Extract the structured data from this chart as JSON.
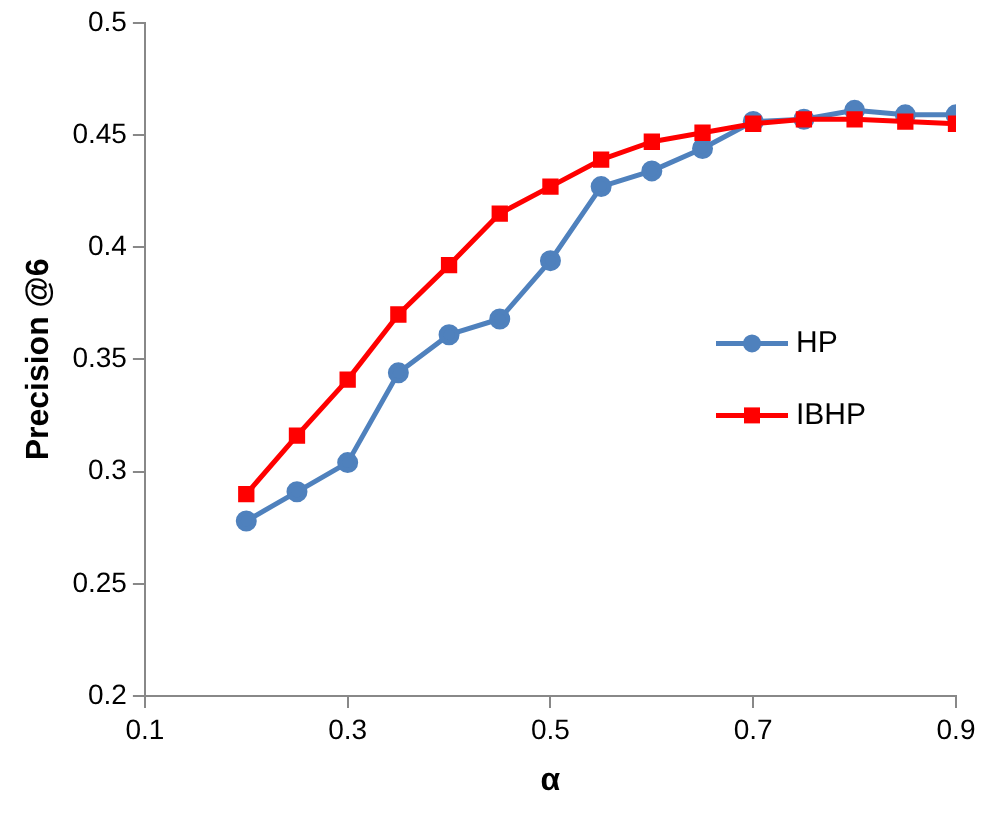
{
  "chart_data": {
    "type": "line",
    "xlabel": "α",
    "ylabel": "Precision @6",
    "x": [
      0.2,
      0.25,
      0.3,
      0.35,
      0.4,
      0.45,
      0.5,
      0.55,
      0.6,
      0.65,
      0.7,
      0.75,
      0.8,
      0.85,
      0.9
    ],
    "series": [
      {
        "name": "HP",
        "color": "#4f81bd",
        "marker": "circle",
        "values": [
          0.278,
          0.291,
          0.304,
          0.344,
          0.361,
          0.368,
          0.394,
          0.427,
          0.434,
          0.444,
          0.456,
          0.457,
          0.461,
          0.459,
          0.459
        ]
      },
      {
        "name": "IBHP",
        "color": "#ff0000",
        "marker": "square",
        "values": [
          0.29,
          0.316,
          0.341,
          0.37,
          0.392,
          0.415,
          0.427,
          0.439,
          0.447,
          0.451,
          0.455,
          0.457,
          0.457,
          0.456,
          0.455
        ]
      }
    ],
    "xlim": [
      0.1,
      0.9
    ],
    "xticks": [
      0.1,
      0.3,
      0.5,
      0.7,
      0.9
    ],
    "ylim": [
      0.2,
      0.5
    ],
    "yticks": [
      0.2,
      0.25,
      0.3,
      0.35,
      0.4,
      0.45,
      0.5
    ],
    "grid": false,
    "legend": "right",
    "line_style": "solid"
  }
}
